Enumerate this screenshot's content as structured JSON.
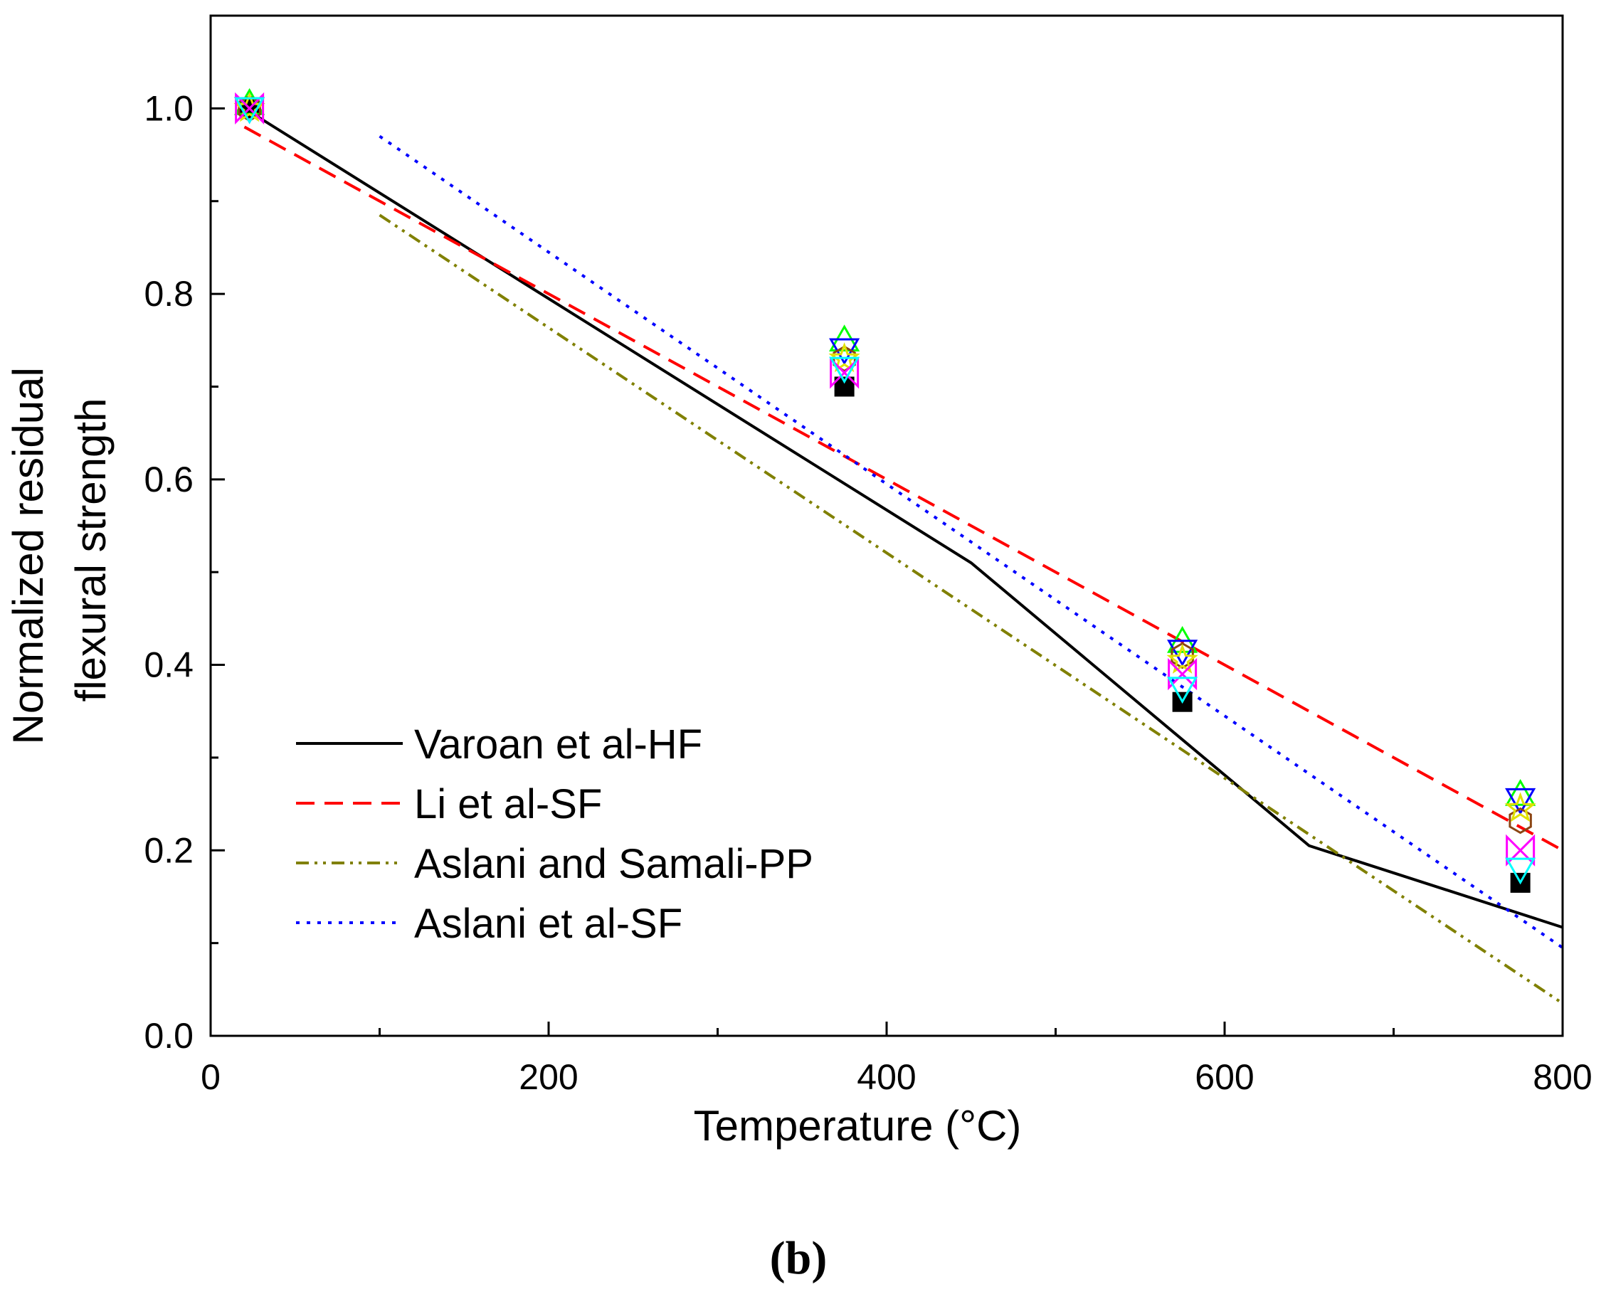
{
  "chart_data": {
    "type": "line",
    "title": "",
    "panel_label": "(b)",
    "xlabel": "Temperature (°C)",
    "ylabel_lines": [
      "Normalized residual",
      "flexural strength"
    ],
    "xlim": [
      0,
      800
    ],
    "ylim": [
      0,
      1.1
    ],
    "x_ticks": [
      0,
      200,
      400,
      600,
      800
    ],
    "x_tick_labels": [
      "0",
      "200",
      "400",
      "600",
      "800"
    ],
    "y_ticks": [
      0.0,
      0.2,
      0.4,
      0.6,
      0.8,
      1.0
    ],
    "y_tick_labels": [
      "0.0",
      "0.2",
      "0.4",
      "0.6",
      "0.8",
      "1.0"
    ],
    "grid": false,
    "legend_position": "bottom-left",
    "series": [
      {
        "name": "Varoan et al-HF",
        "style": "solid",
        "color": "#000000",
        "x": [
          20,
          450,
          650,
          800
        ],
        "y": [
          1.0,
          0.51,
          0.205,
          0.117
        ]
      },
      {
        "name": "Li et al-SF",
        "style": "dashed",
        "color": "#ff0000",
        "x": [
          20,
          800
        ],
        "y": [
          0.98,
          0.2
        ]
      },
      {
        "name": "Aslani and Samali-PP",
        "style": "dashdotdot",
        "color": "#808000",
        "x": [
          100,
          800
        ],
        "y": [
          0.885,
          0.035
        ]
      },
      {
        "name": "Aslani et al-SF",
        "style": "dotted",
        "color": "#0000ff",
        "x": [
          100,
          800
        ],
        "y": [
          0.97,
          0.095
        ]
      }
    ],
    "scatter": [
      {
        "marker": "filled-square",
        "color": "#000000",
        "x": [
          23,
          375,
          575,
          775
        ],
        "y": [
          1.0,
          0.7,
          0.36,
          0.165
        ]
      },
      {
        "marker": "triangle-up",
        "color": "#00ff00",
        "x": [
          23,
          375,
          575,
          775
        ],
        "y": [
          1.005,
          0.75,
          0.425,
          0.26
        ]
      },
      {
        "marker": "triangle-down",
        "color": "#0000ff",
        "x": [
          23,
          375,
          575,
          775
        ],
        "y": [
          1.0,
          0.74,
          0.415,
          0.255
        ]
      },
      {
        "marker": "hexagon",
        "color": "#8b4513",
        "x": [
          23,
          375,
          575,
          775
        ],
        "y": [
          1.0,
          0.73,
          0.41,
          0.232
        ]
      },
      {
        "marker": "star",
        "color": "#e0e000",
        "x": [
          23,
          375,
          575,
          775
        ],
        "y": [
          1.0,
          0.73,
          0.405,
          0.245
        ]
      },
      {
        "marker": "x-bowtie",
        "color": "#ff00ff",
        "x": [
          23,
          375,
          575,
          775
        ],
        "y": [
          1.0,
          0.715,
          0.39,
          0.2
        ]
      },
      {
        "marker": "triangle-down",
        "color": "#00ffff",
        "x": [
          23,
          375,
          575,
          775
        ],
        "y": [
          1.0,
          0.72,
          0.375,
          0.18
        ]
      }
    ]
  }
}
